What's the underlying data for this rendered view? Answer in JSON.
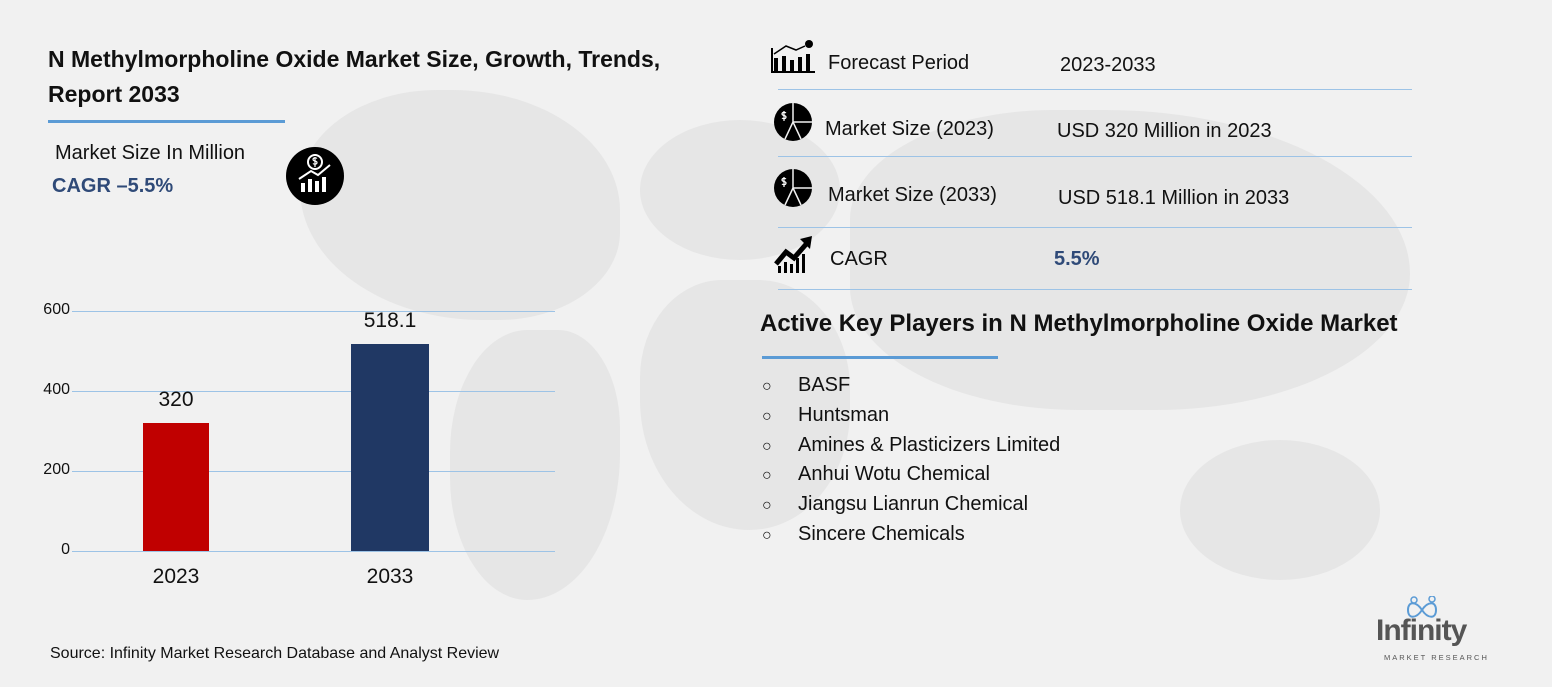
{
  "header": {
    "title": "N Methylmorpholine Oxide Market Size, Growth, Trends, Report 2033",
    "subtitle": "Market Size In Million",
    "cagr_label": "CAGR –5.5%"
  },
  "chart_data": {
    "type": "bar",
    "categories": [
      "2023",
      "2033"
    ],
    "values": [
      320,
      518.1
    ],
    "data_labels": [
      "320",
      "518.1"
    ],
    "colors": [
      "#c00000",
      "#203864"
    ],
    "yticks": [
      "0",
      "200",
      "400",
      "600"
    ],
    "ylim": [
      0,
      600
    ],
    "grid": true,
    "title": "",
    "xlabel": "",
    "ylabel": ""
  },
  "summary": {
    "rows": [
      {
        "label": "Forecast Period",
        "value": "2023-2033",
        "icon": "bar-chart-forecast-icon"
      },
      {
        "label": "Market Size (2023)",
        "value": "USD 320 Million in 2023",
        "icon": "dollar-pie-icon"
      },
      {
        "label": "Market Size (2033)",
        "value": "USD  518.1 Million in 2033",
        "icon": "dollar-pie-icon"
      },
      {
        "label": "CAGR",
        "value": "5.5%",
        "icon": "growth-arrow-icon"
      }
    ]
  },
  "key_players": {
    "title": "Active Key Players in N Methylmorpholine Oxide Market",
    "bullet": "○",
    "items": [
      "BASF",
      "Huntsman",
      "Amines & Plasticizers Limited",
      "Anhui Wotu Chemical",
      "Jiangsu Lianrun Chemical",
      "Sincere Chemicals"
    ]
  },
  "source": "Source: Infinity Market Research Database and Analyst Review",
  "logo": {
    "name": "Infinity",
    "tagline": "MARKET RESEARCH"
  },
  "accent": "#5b9bd5"
}
